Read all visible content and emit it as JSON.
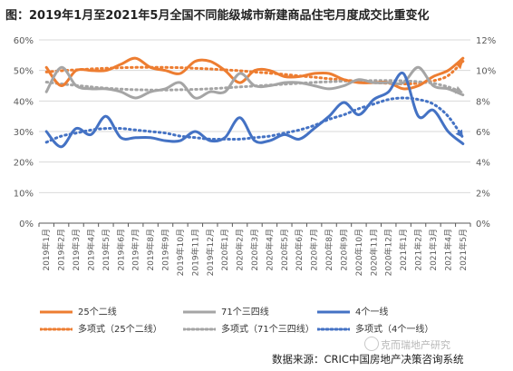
{
  "title": "图：2019年1月至2021年5月全国不同能级城市新建商品住宅月度成交比重变化",
  "source": "数据来源：CRIC中国房地产决策咨询系统",
  "watermark": "克而瑞地产研究",
  "colors": {
    "orange": "#ED7D31",
    "gray": "#A5A5A5",
    "blue": "#4472C4",
    "grid": "#D9D9D9",
    "axis": "#595959"
  },
  "chart_data": {
    "type": "line",
    "categories": [
      "2019年1月",
      "2019年2月",
      "2019年3月",
      "2019年4月",
      "2019年5月",
      "2019年6月",
      "2019年7月",
      "2019年8月",
      "2019年9月",
      "2019年10月",
      "2019年11月",
      "2019年12月",
      "2020年1月",
      "2020年2月",
      "2020年3月",
      "2020年4月",
      "2020年5月",
      "2020年6月",
      "2020年7月",
      "2020年8月",
      "2020年9月",
      "2020年10月",
      "2020年11月",
      "2020年12月",
      "2021年1月",
      "2021年2月",
      "2021年3月",
      "2021年4月",
      "2021年5月"
    ],
    "y_left": {
      "ticks": [
        "0%",
        "10%",
        "20%",
        "30%",
        "40%",
        "50%",
        "60%"
      ],
      "range": [
        0,
        60
      ]
    },
    "y_right": {
      "ticks": [
        "0%",
        "2%",
        "4%",
        "6%",
        "8%",
        "10%",
        "12%"
      ],
      "range": [
        0,
        12
      ]
    },
    "series": [
      {
        "name": "25个二线",
        "axis": "left",
        "style": "solid",
        "color": "#ED7D31",
        "values": [
          51,
          45,
          50,
          50,
          50,
          52,
          54,
          51,
          50,
          49,
          53,
          53,
          50,
          46,
          50,
          50,
          48,
          48,
          49,
          49,
          47,
          46,
          46,
          46,
          44,
          45,
          48,
          50,
          54
        ]
      },
      {
        "name": "71个三四线",
        "axis": "left",
        "style": "solid",
        "color": "#A5A5A5",
        "values": [
          43,
          51,
          45,
          44,
          44,
          43,
          41,
          43,
          44,
          46,
          41,
          43,
          43,
          49,
          45,
          45,
          46,
          46,
          45,
          44,
          45,
          47,
          46,
          46,
          46,
          51,
          45,
          44,
          42
        ]
      },
      {
        "name": "4个一线",
        "axis": "right",
        "style": "solid",
        "color": "#4472C4",
        "values": [
          6.0,
          5.0,
          6.2,
          5.8,
          7.0,
          5.6,
          5.6,
          5.6,
          5.4,
          5.4,
          6.0,
          5.4,
          5.6,
          6.9,
          5.4,
          5.4,
          5.8,
          5.5,
          6.2,
          7.0,
          7.9,
          7.1,
          8.1,
          8.6,
          9.8,
          7.0,
          7.4,
          6.0,
          5.2
        ]
      },
      {
        "name": "多项式（25个二线）",
        "axis": "left",
        "style": "dotted",
        "color": "#ED7D31",
        "values": [
          49.5,
          49.9,
          50.2,
          50.5,
          50.7,
          50.9,
          51.0,
          51.0,
          51.0,
          50.9,
          50.7,
          50.5,
          50.2,
          49.9,
          49.5,
          49.1,
          48.7,
          48.2,
          47.8,
          47.3,
          46.9,
          46.4,
          46.0,
          45.8,
          45.6,
          45.8,
          46.6,
          48.3,
          53.0
        ]
      },
      {
        "name": "多项式（71个三四线）",
        "axis": "left",
        "style": "dotted",
        "color": "#A5A5A5",
        "values": [
          46.2,
          45.6,
          45.1,
          44.6,
          44.2,
          43.9,
          43.7,
          43.6,
          43.6,
          43.7,
          43.8,
          44.0,
          44.3,
          44.6,
          44.9,
          45.2,
          45.5,
          45.8,
          46.1,
          46.3,
          46.5,
          46.6,
          46.7,
          46.7,
          46.6,
          46.3,
          45.8,
          44.6,
          42.8
        ]
      },
      {
        "name": "多项式（4个一线）",
        "axis": "right",
        "style": "dotted",
        "color": "#4472C4",
        "values": [
          5.3,
          5.7,
          5.9,
          6.1,
          6.2,
          6.2,
          6.1,
          6.0,
          5.9,
          5.7,
          5.6,
          5.5,
          5.5,
          5.5,
          5.6,
          5.7,
          5.9,
          6.1,
          6.4,
          6.8,
          7.1,
          7.5,
          7.8,
          8.1,
          8.2,
          8.1,
          7.8,
          7.0,
          5.6
        ]
      }
    ]
  }
}
